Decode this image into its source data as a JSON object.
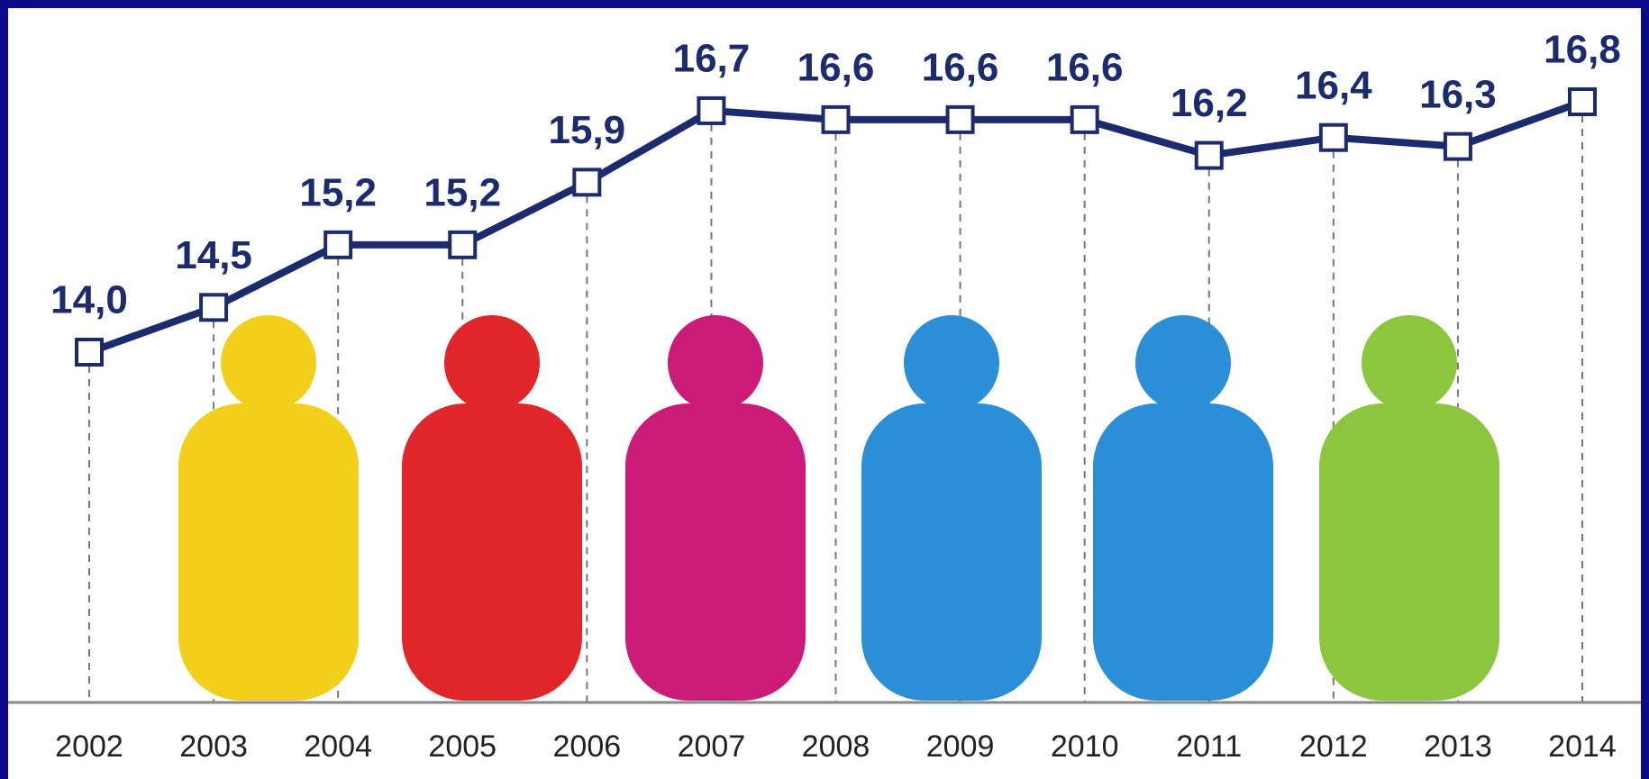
{
  "chart_data": {
    "type": "line",
    "categories": [
      "2002",
      "2003",
      "2004",
      "2005",
      "2006",
      "2007",
      "2008",
      "2009",
      "2010",
      "2011",
      "2012",
      "2013",
      "2014"
    ],
    "values": [
      14.0,
      14.5,
      15.2,
      15.2,
      15.9,
      16.7,
      16.6,
      16.6,
      16.6,
      16.2,
      16.4,
      16.3,
      16.8
    ],
    "value_labels": [
      "14,0",
      "14,5",
      "15,2",
      "15,2",
      "15,9",
      "16,7",
      "16,6",
      "16,6",
      "16,6",
      "16,2",
      "16,4",
      "16,3",
      "16,8"
    ],
    "color": "#1c2a6e"
  }
}
